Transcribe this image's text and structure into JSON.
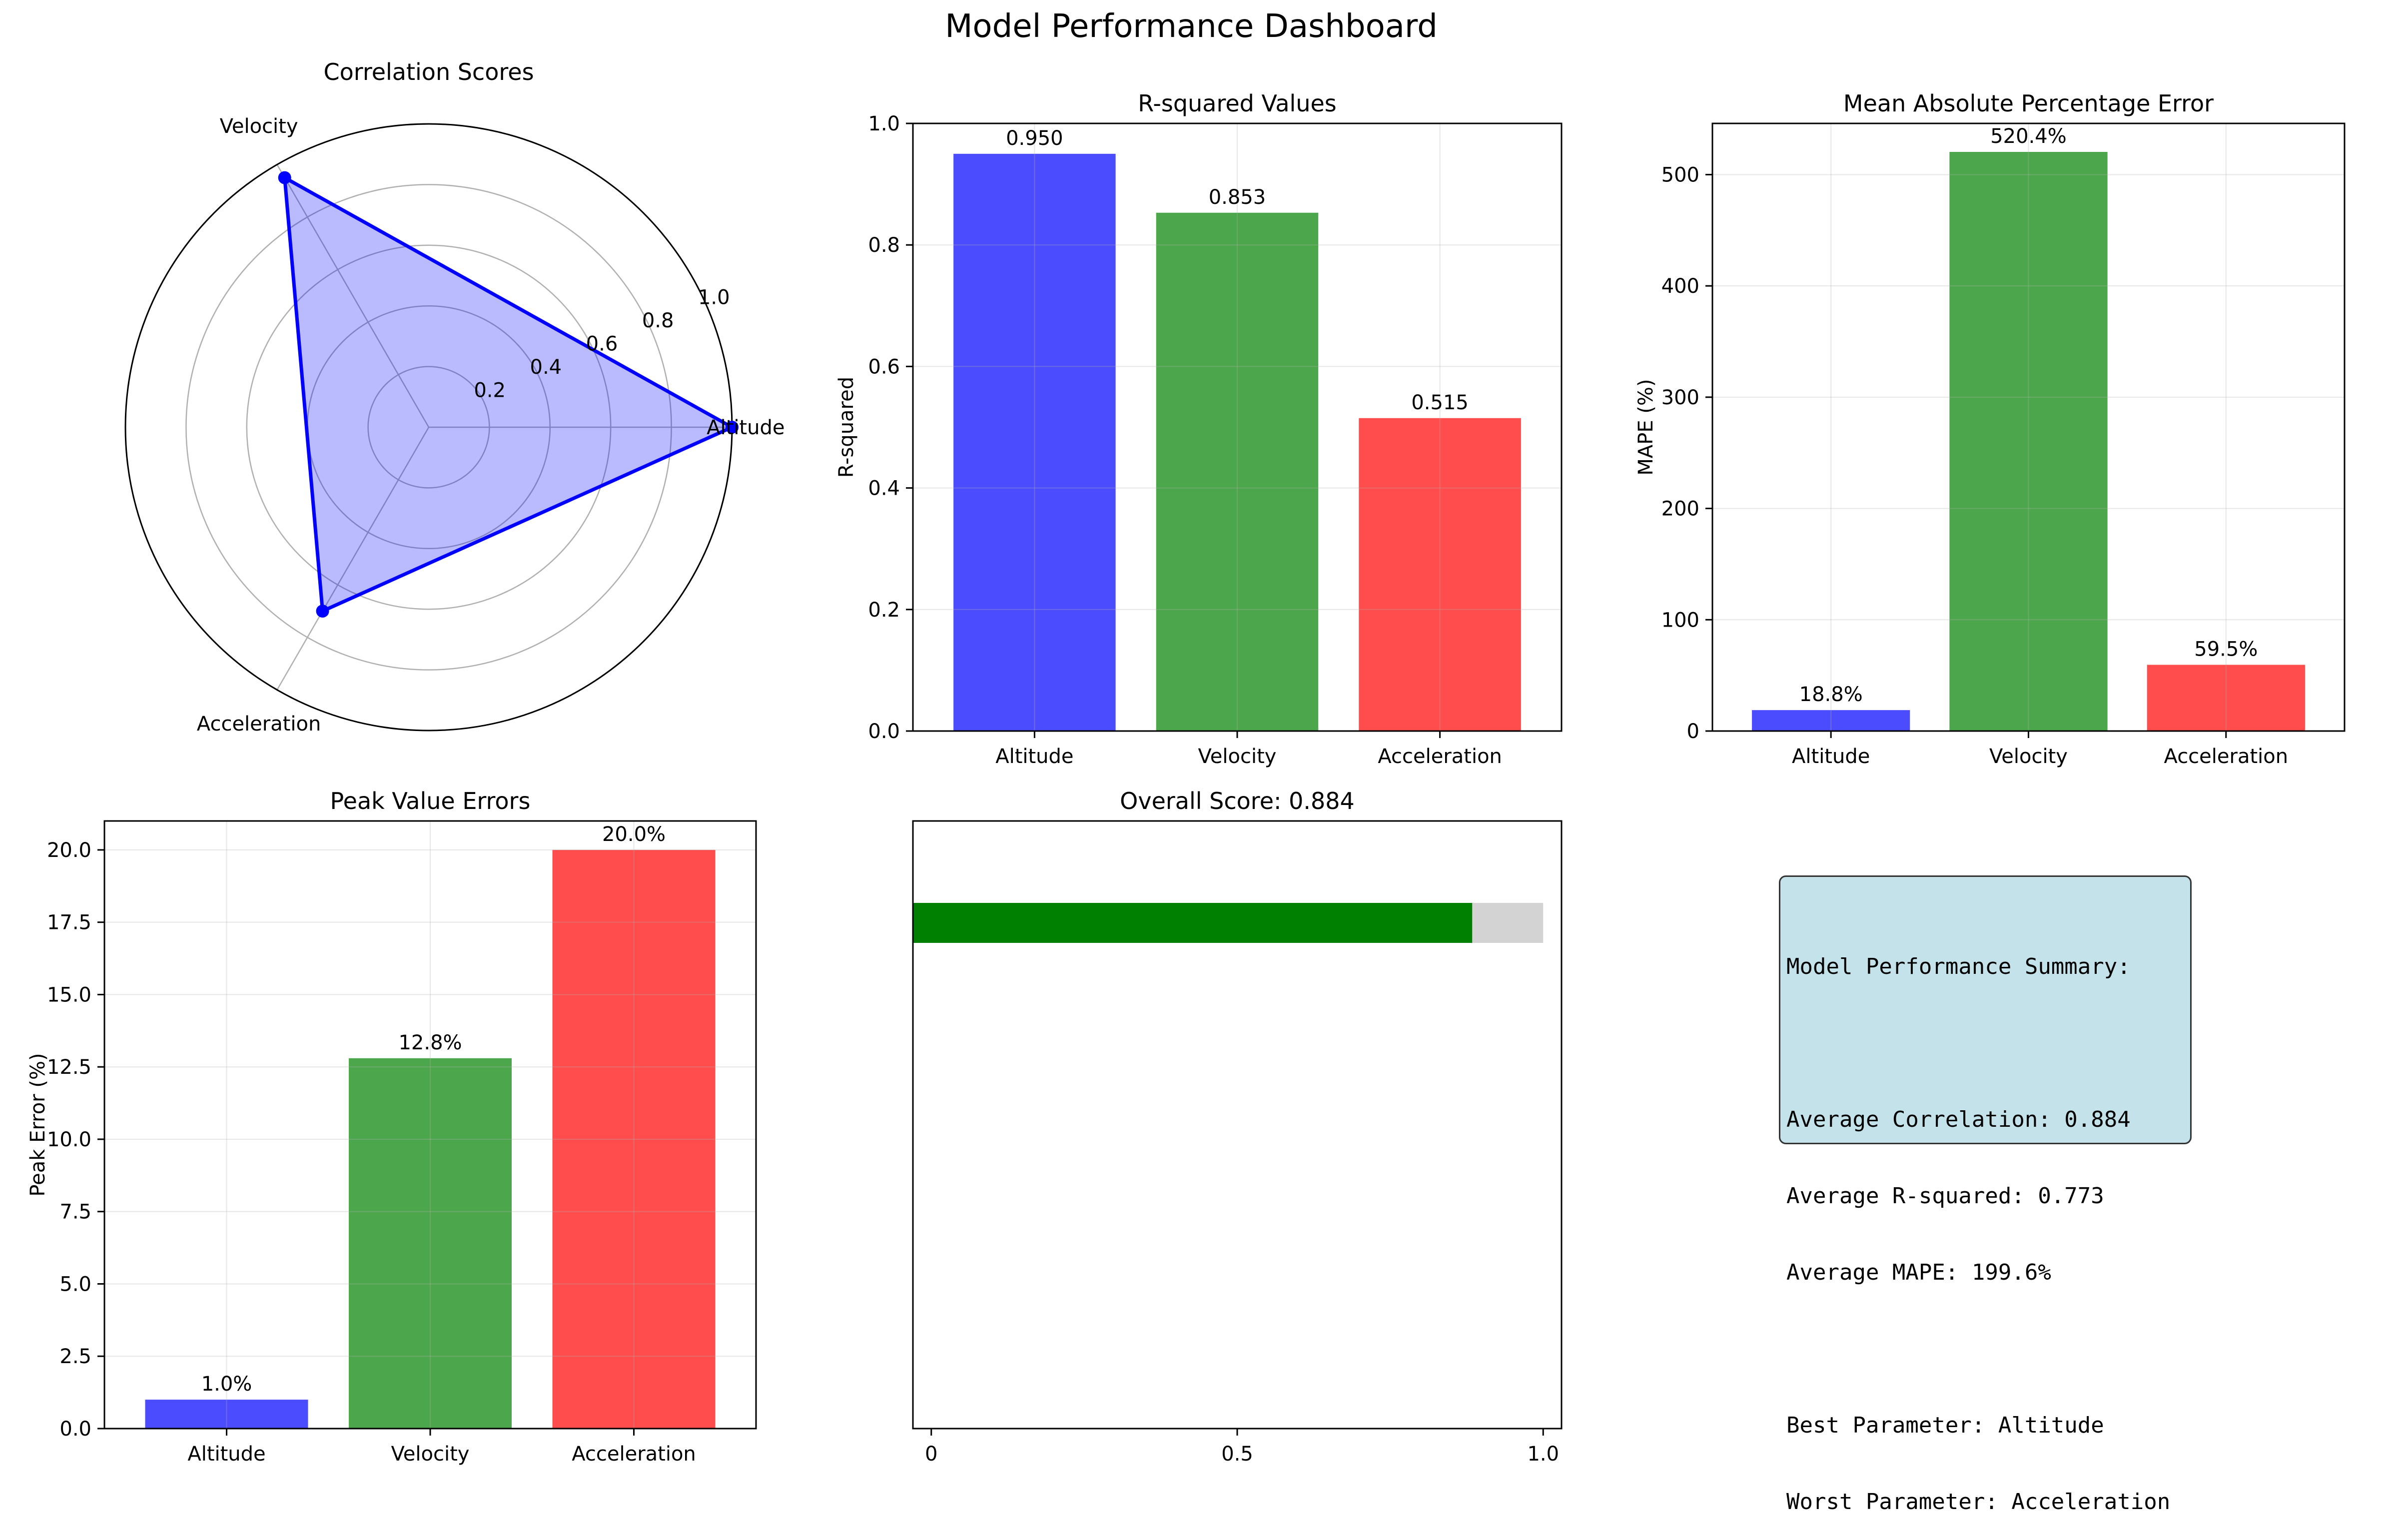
{
  "title": "Model Performance Dashboard",
  "colors": {
    "blue": "#0000ff",
    "green": "#008000",
    "red": "#ff0000",
    "grey": "#d3d3d3",
    "box": "#c3e2ea"
  },
  "chart_data": [
    {
      "id": "radar",
      "type": "radar",
      "title": "Correlation Scores",
      "categories": [
        "Altitude",
        "Velocity",
        "Acceleration"
      ],
      "values": [
        1.0,
        0.95,
        0.7
      ],
      "rlim": [
        0,
        1
      ],
      "rticks": [
        "0.2",
        "0.4",
        "0.6",
        "0.8",
        "1.0"
      ],
      "grid": true
    },
    {
      "id": "rsq",
      "type": "bar",
      "title": "R-squared Values",
      "ylabel": "R-squared",
      "categories": [
        "Altitude",
        "Velocity",
        "Acceleration"
      ],
      "values": [
        0.95,
        0.853,
        0.515
      ],
      "labels": [
        "0.950",
        "0.853",
        "0.515"
      ],
      "ylim": [
        0,
        1
      ],
      "yticks": [
        0,
        0.2,
        0.4,
        0.6,
        0.8,
        1.0
      ],
      "ytick_labels": [
        "0.0",
        "0.2",
        "0.4",
        "0.6",
        "0.8",
        "1.0"
      ],
      "grid": true
    },
    {
      "id": "mape",
      "type": "bar",
      "title": "Mean Absolute Percentage Error",
      "ylabel": "MAPE (%)",
      "categories": [
        "Altitude",
        "Velocity",
        "Acceleration"
      ],
      "values": [
        18.8,
        520.4,
        59.5
      ],
      "labels": [
        "18.8%",
        "520.4%",
        "59.5%"
      ],
      "ylim": [
        0,
        546
      ],
      "yticks": [
        0,
        100,
        200,
        300,
        400,
        500
      ],
      "ytick_labels": [
        "0",
        "100",
        "200",
        "300",
        "400",
        "500"
      ],
      "grid": true
    },
    {
      "id": "peak",
      "type": "bar",
      "title": "Peak Value Errors",
      "ylabel": "Peak Error (%)",
      "categories": [
        "Altitude",
        "Velocity",
        "Acceleration"
      ],
      "values": [
        1.0,
        12.8,
        20.0
      ],
      "labels": [
        "1.0%",
        "12.8%",
        "20.0%"
      ],
      "ylim": [
        0,
        21
      ],
      "yticks": [
        0,
        2.5,
        5,
        7.5,
        10,
        12.5,
        15,
        17.5,
        20
      ],
      "ytick_labels": [
        "0.0",
        "2.5",
        "5.0",
        "7.5",
        "10.0",
        "12.5",
        "15.0",
        "17.5",
        "20.0"
      ],
      "grid": true
    },
    {
      "id": "overall",
      "type": "bar",
      "orientation": "horizontal",
      "title": "Overall Score: 0.884",
      "value": 0.884,
      "track_value": 1.0,
      "xlim": [
        -0.03,
        1.03
      ],
      "xticks": [
        0,
        0.5,
        1.0
      ],
      "xtick_labels": [
        "0",
        "0.5",
        "1.0"
      ]
    }
  ],
  "summary": {
    "lines": [
      "Model Performance Summary:",
      "",
      "Average Correlation: 0.884",
      "Average R-squared: 0.773",
      "Average MAPE: 199.6%",
      "",
      "Best Parameter: Altitude",
      "Worst Parameter: Acceleration"
    ]
  }
}
